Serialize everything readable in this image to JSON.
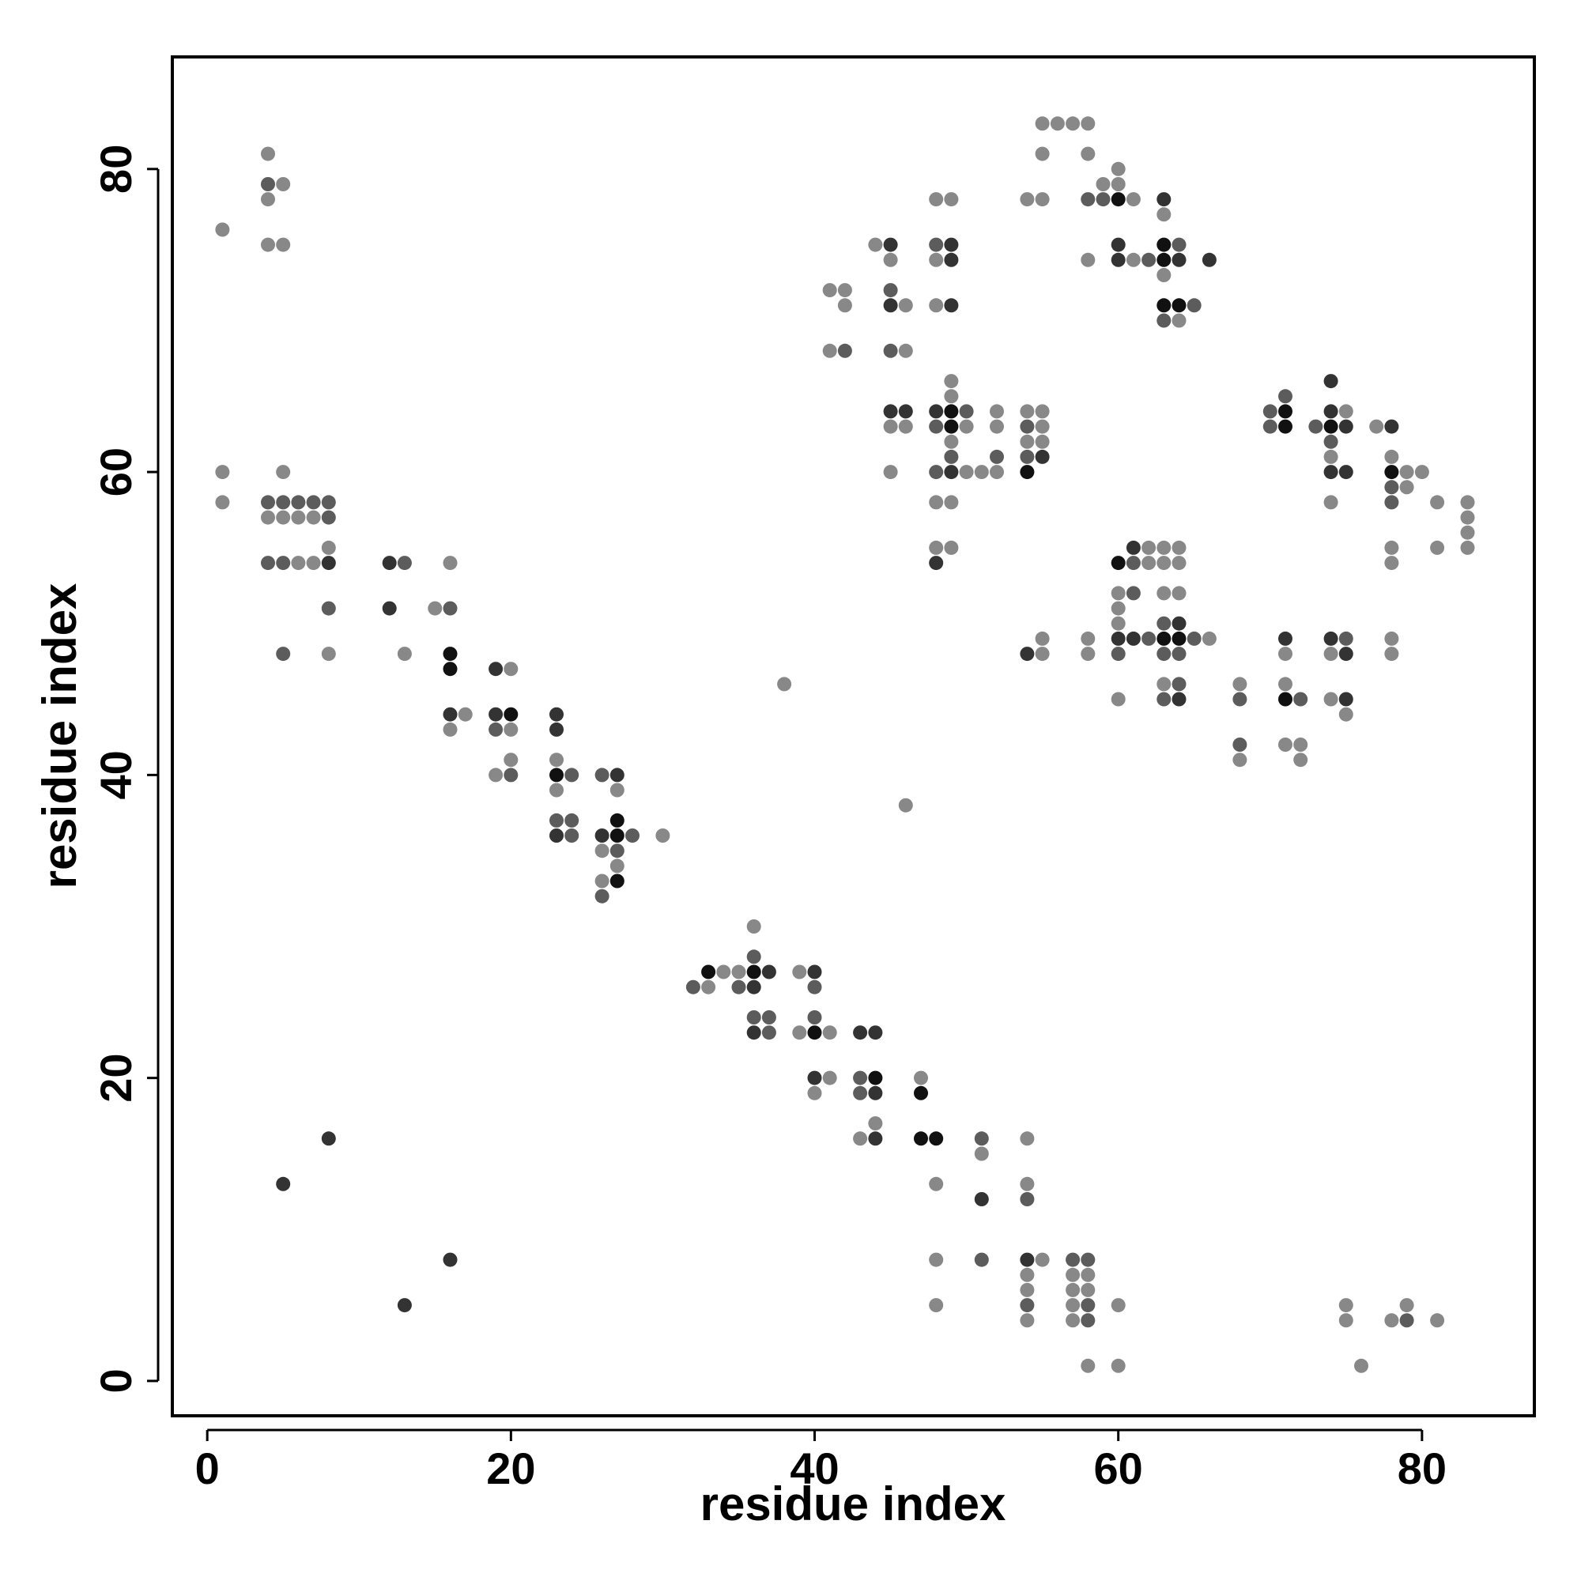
{
  "chart_data": {
    "type": "scatter",
    "xlabel": "residue index",
    "ylabel": "residue index",
    "xlim": [
      -2.3,
      87.4
    ],
    "ylim": [
      -2.3,
      87.4
    ],
    "xticks": [
      0,
      20,
      40,
      60,
      80
    ],
    "yticks": [
      0,
      20,
      40,
      60,
      80
    ],
    "grid": false,
    "legend": "none",
    "colors": {
      "light": "#888888",
      "medium": "#5c5c5c",
      "dark": "#333333",
      "darkest": "#111111"
    },
    "points": [
      [
        1,
        76,
        1
      ],
      [
        4,
        81,
        1
      ],
      [
        4,
        79,
        2
      ],
      [
        5,
        79,
        1
      ],
      [
        4,
        78,
        1
      ],
      [
        4,
        75,
        1
      ],
      [
        5,
        75,
        1
      ],
      [
        1,
        60,
        1
      ],
      [
        1,
        58,
        1
      ],
      [
        5,
        60,
        1
      ],
      [
        4,
        58,
        2
      ],
      [
        5,
        58,
        2
      ],
      [
        6,
        58,
        2
      ],
      [
        7,
        58,
        2
      ],
      [
        8,
        58,
        2
      ],
      [
        4,
        57,
        1
      ],
      [
        5,
        57,
        1
      ],
      [
        6,
        57,
        1
      ],
      [
        7,
        57,
        1
      ],
      [
        8,
        57,
        2
      ],
      [
        8,
        55,
        1
      ],
      [
        4,
        54,
        2
      ],
      [
        5,
        54,
        2
      ],
      [
        6,
        54,
        1
      ],
      [
        7,
        54,
        1
      ],
      [
        8,
        54,
        3
      ],
      [
        8,
        51,
        2
      ],
      [
        5,
        48,
        2
      ],
      [
        8,
        48,
        1
      ],
      [
        12,
        54,
        3
      ],
      [
        13,
        54,
        2
      ],
      [
        16,
        54,
        1
      ],
      [
        12,
        51,
        3
      ],
      [
        15,
        51,
        1
      ],
      [
        16,
        51,
        2
      ],
      [
        13,
        48,
        1
      ],
      [
        16,
        48,
        4
      ],
      [
        16,
        47,
        4
      ],
      [
        16,
        44,
        3
      ],
      [
        17,
        44,
        1
      ],
      [
        16,
        43,
        1
      ],
      [
        19,
        47,
        3
      ],
      [
        20,
        47,
        1
      ],
      [
        19,
        44,
        3
      ],
      [
        20,
        44,
        4
      ],
      [
        19,
        43,
        2
      ],
      [
        20,
        43,
        1
      ],
      [
        20,
        41,
        1
      ],
      [
        19,
        40,
        1
      ],
      [
        20,
        40,
        2
      ],
      [
        23,
        44,
        3
      ],
      [
        23,
        43,
        3
      ],
      [
        23,
        41,
        1
      ],
      [
        23,
        40,
        4
      ],
      [
        24,
        40,
        2
      ],
      [
        23,
        39,
        1
      ],
      [
        23,
        37,
        2
      ],
      [
        24,
        37,
        2
      ],
      [
        23,
        36,
        3
      ],
      [
        24,
        36,
        2
      ],
      [
        26,
        40,
        2
      ],
      [
        27,
        40,
        3
      ],
      [
        27,
        39,
        1
      ],
      [
        27,
        37,
        4
      ],
      [
        26,
        36,
        3
      ],
      [
        27,
        36,
        4
      ],
      [
        28,
        36,
        2
      ],
      [
        30,
        36,
        1
      ],
      [
        26,
        35,
        1
      ],
      [
        27,
        35,
        2
      ],
      [
        27,
        34,
        1
      ],
      [
        26,
        33,
        1
      ],
      [
        27,
        33,
        4
      ],
      [
        26,
        32,
        2
      ],
      [
        38,
        46,
        1
      ],
      [
        46,
        38,
        1
      ],
      [
        36,
        30,
        1
      ],
      [
        36,
        28,
        2
      ],
      [
        33,
        27,
        4
      ],
      [
        34,
        27,
        1
      ],
      [
        35,
        27,
        1
      ],
      [
        36,
        27,
        4
      ],
      [
        37,
        27,
        3
      ],
      [
        32,
        26,
        2
      ],
      [
        33,
        26,
        1
      ],
      [
        35,
        26,
        2
      ],
      [
        36,
        26,
        3
      ],
      [
        36,
        24,
        2
      ],
      [
        37,
        24,
        2
      ],
      [
        36,
        23,
        3
      ],
      [
        37,
        23,
        2
      ],
      [
        39,
        27,
        1
      ],
      [
        40,
        27,
        3
      ],
      [
        40,
        26,
        2
      ],
      [
        40,
        24,
        2
      ],
      [
        39,
        23,
        1
      ],
      [
        40,
        23,
        4
      ],
      [
        41,
        23,
        1
      ],
      [
        43,
        23,
        3
      ],
      [
        44,
        23,
        3
      ],
      [
        40,
        20,
        3
      ],
      [
        41,
        20,
        1
      ],
      [
        40,
        19,
        1
      ],
      [
        43,
        20,
        2
      ],
      [
        44,
        20,
        4
      ],
      [
        43,
        19,
        2
      ],
      [
        44,
        19,
        3
      ],
      [
        44,
        17,
        1
      ],
      [
        43,
        16,
        1
      ],
      [
        44,
        16,
        3
      ],
      [
        47,
        20,
        1
      ],
      [
        47,
        19,
        4
      ],
      [
        47,
        16,
        4
      ],
      [
        48,
        16,
        4
      ],
      [
        51,
        16,
        2
      ],
      [
        51,
        15,
        1
      ],
      [
        54,
        16,
        1
      ],
      [
        48,
        13,
        1
      ],
      [
        54,
        13,
        1
      ],
      [
        51,
        12,
        3
      ],
      [
        54,
        12,
        2
      ],
      [
        5,
        13,
        3
      ],
      [
        8,
        16,
        3
      ],
      [
        16,
        8,
        3
      ],
      [
        13,
        5,
        3
      ],
      [
        48,
        8,
        1
      ],
      [
        51,
        8,
        2
      ],
      [
        54,
        8,
        3
      ],
      [
        55,
        8,
        1
      ],
      [
        57,
        8,
        2
      ],
      [
        58,
        8,
        2
      ],
      [
        54,
        7,
        1
      ],
      [
        57,
        7,
        1
      ],
      [
        58,
        7,
        1
      ],
      [
        54,
        6,
        1
      ],
      [
        57,
        6,
        1
      ],
      [
        58,
        6,
        1
      ],
      [
        48,
        5,
        1
      ],
      [
        54,
        5,
        2
      ],
      [
        57,
        5,
        1
      ],
      [
        58,
        5,
        2
      ],
      [
        60,
        5,
        1
      ],
      [
        54,
        4,
        1
      ],
      [
        57,
        4,
        1
      ],
      [
        58,
        4,
        2
      ],
      [
        58,
        1,
        1
      ],
      [
        60,
        1,
        1
      ],
      [
        75,
        5,
        1
      ],
      [
        79,
        5,
        1
      ],
      [
        75,
        4,
        1
      ],
      [
        78,
        4,
        1
      ],
      [
        79,
        4,
        2
      ],
      [
        81,
        4,
        1
      ],
      [
        76,
        1,
        1
      ],
      [
        55,
        83,
        1
      ],
      [
        56,
        83,
        1
      ],
      [
        57,
        83,
        1
      ],
      [
        58,
        83,
        1
      ],
      [
        55,
        81,
        1
      ],
      [
        58,
        81,
        1
      ],
      [
        60,
        80,
        1
      ],
      [
        59,
        79,
        1
      ],
      [
        60,
        79,
        1
      ],
      [
        54,
        78,
        1
      ],
      [
        55,
        78,
        1
      ],
      [
        58,
        78,
        2
      ],
      [
        59,
        78,
        2
      ],
      [
        60,
        78,
        4
      ],
      [
        61,
        78,
        1
      ],
      [
        63,
        78,
        3
      ],
      [
        63,
        77,
        1
      ],
      [
        60,
        75,
        3
      ],
      [
        63,
        75,
        4
      ],
      [
        64,
        75,
        2
      ],
      [
        58,
        74,
        1
      ],
      [
        60,
        74,
        3
      ],
      [
        61,
        74,
        1
      ],
      [
        62,
        74,
        2
      ],
      [
        63,
        74,
        4
      ],
      [
        64,
        74,
        3
      ],
      [
        66,
        74,
        3
      ],
      [
        63,
        73,
        1
      ],
      [
        63,
        71,
        4
      ],
      [
        64,
        71,
        4
      ],
      [
        65,
        71,
        2
      ],
      [
        63,
        70,
        2
      ],
      [
        64,
        70,
        1
      ],
      [
        41,
        72,
        1
      ],
      [
        42,
        72,
        1
      ],
      [
        42,
        71,
        1
      ],
      [
        41,
        68,
        1
      ],
      [
        42,
        68,
        2
      ],
      [
        44,
        75,
        1
      ],
      [
        45,
        75,
        3
      ],
      [
        45,
        74,
        1
      ],
      [
        45,
        72,
        2
      ],
      [
        45,
        71,
        3
      ],
      [
        46,
        71,
        1
      ],
      [
        45,
        68,
        2
      ],
      [
        46,
        68,
        1
      ],
      [
        48,
        78,
        1
      ],
      [
        49,
        78,
        1
      ],
      [
        48,
        75,
        2
      ],
      [
        49,
        75,
        3
      ],
      [
        48,
        74,
        1
      ],
      [
        49,
        74,
        3
      ],
      [
        48,
        71,
        1
      ],
      [
        49,
        71,
        3
      ],
      [
        45,
        64,
        3
      ],
      [
        46,
        64,
        3
      ],
      [
        45,
        63,
        1
      ],
      [
        46,
        63,
        1
      ],
      [
        45,
        60,
        1
      ],
      [
        49,
        66,
        1
      ],
      [
        49,
        65,
        1
      ],
      [
        48,
        64,
        3
      ],
      [
        49,
        64,
        4
      ],
      [
        50,
        64,
        2
      ],
      [
        48,
        63,
        2
      ],
      [
        49,
        63,
        4
      ],
      [
        50,
        63,
        1
      ],
      [
        49,
        62,
        1
      ],
      [
        49,
        61,
        2
      ],
      [
        48,
        60,
        2
      ],
      [
        49,
        60,
        3
      ],
      [
        50,
        60,
        1
      ],
      [
        51,
        60,
        1
      ],
      [
        48,
        58,
        1
      ],
      [
        49,
        58,
        1
      ],
      [
        48,
        55,
        1
      ],
      [
        49,
        55,
        1
      ],
      [
        48,
        54,
        3
      ],
      [
        52,
        64,
        1
      ],
      [
        52,
        63,
        1
      ],
      [
        52,
        61,
        2
      ],
      [
        52,
        60,
        1
      ],
      [
        54,
        64,
        1
      ],
      [
        55,
        64,
        1
      ],
      [
        54,
        63,
        2
      ],
      [
        55,
        63,
        1
      ],
      [
        54,
        62,
        1
      ],
      [
        55,
        62,
        1
      ],
      [
        54,
        61,
        2
      ],
      [
        55,
        61,
        3
      ],
      [
        54,
        60,
        4
      ],
      [
        70,
        64,
        2
      ],
      [
        71,
        64,
        4
      ],
      [
        71,
        65,
        2
      ],
      [
        70,
        63,
        2
      ],
      [
        71,
        63,
        4
      ],
      [
        73,
        63,
        2
      ],
      [
        74,
        66,
        3
      ],
      [
        74,
        64,
        3
      ],
      [
        75,
        64,
        1
      ],
      [
        74,
        63,
        4
      ],
      [
        75,
        63,
        3
      ],
      [
        74,
        62,
        2
      ],
      [
        74,
        61,
        1
      ],
      [
        74,
        60,
        3
      ],
      [
        75,
        60,
        3
      ],
      [
        74,
        58,
        1
      ],
      [
        77,
        63,
        1
      ],
      [
        78,
        63,
        3
      ],
      [
        78,
        61,
        1
      ],
      [
        78,
        60,
        4
      ],
      [
        79,
        60,
        1
      ],
      [
        80,
        60,
        1
      ],
      [
        78,
        59,
        2
      ],
      [
        79,
        59,
        1
      ],
      [
        78,
        58,
        2
      ],
      [
        81,
        58,
        1
      ],
      [
        83,
        58,
        1
      ],
      [
        83,
        57,
        1
      ],
      [
        83,
        56,
        1
      ],
      [
        81,
        55,
        1
      ],
      [
        83,
        55,
        1
      ],
      [
        78,
        55,
        1
      ],
      [
        78,
        54,
        1
      ],
      [
        60,
        54,
        4
      ],
      [
        61,
        54,
        2
      ],
      [
        61,
        55,
        3
      ],
      [
        62,
        55,
        1
      ],
      [
        63,
        55,
        1
      ],
      [
        64,
        55,
        1
      ],
      [
        62,
        54,
        1
      ],
      [
        63,
        54,
        1
      ],
      [
        64,
        54,
        1
      ],
      [
        60,
        52,
        1
      ],
      [
        61,
        52,
        2
      ],
      [
        63,
        52,
        1
      ],
      [
        64,
        52,
        1
      ],
      [
        60,
        51,
        1
      ],
      [
        60,
        50,
        1
      ],
      [
        63,
        50,
        2
      ],
      [
        64,
        50,
        3
      ],
      [
        54,
        48,
        3
      ],
      [
        55,
        49,
        1
      ],
      [
        55,
        48,
        1
      ],
      [
        58,
        49,
        1
      ],
      [
        58,
        48,
        1
      ],
      [
        60,
        49,
        3
      ],
      [
        61,
        49,
        3
      ],
      [
        62,
        49,
        2
      ],
      [
        63,
        49,
        4
      ],
      [
        64,
        49,
        4
      ],
      [
        65,
        49,
        2
      ],
      [
        66,
        49,
        1
      ],
      [
        60,
        48,
        2
      ],
      [
        63,
        48,
        2
      ],
      [
        64,
        48,
        2
      ],
      [
        60,
        45,
        1
      ],
      [
        63,
        46,
        1
      ],
      [
        64,
        46,
        2
      ],
      [
        63,
        45,
        2
      ],
      [
        64,
        45,
        3
      ],
      [
        68,
        46,
        1
      ],
      [
        68,
        45,
        2
      ],
      [
        68,
        42,
        2
      ],
      [
        68,
        41,
        1
      ],
      [
        71,
        49,
        3
      ],
      [
        71,
        48,
        1
      ],
      [
        71,
        46,
        1
      ],
      [
        71,
        45,
        4
      ],
      [
        72,
        45,
        2
      ],
      [
        71,
        42,
        1
      ],
      [
        72,
        42,
        1
      ],
      [
        72,
        41,
        1
      ],
      [
        74,
        49,
        3
      ],
      [
        75,
        49,
        2
      ],
      [
        74,
        48,
        1
      ],
      [
        75,
        48,
        3
      ],
      [
        74,
        45,
        1
      ],
      [
        75,
        45,
        3
      ],
      [
        75,
        44,
        1
      ],
      [
        78,
        49,
        1
      ],
      [
        78,
        48,
        1
      ]
    ]
  }
}
